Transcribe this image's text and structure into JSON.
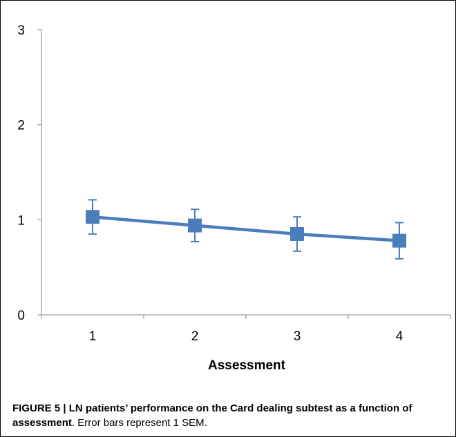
{
  "chart_data": {
    "type": "line",
    "categories": [
      "1",
      "2",
      "3",
      "4"
    ],
    "series": [
      {
        "values": [
          1.03,
          0.94,
          0.85,
          0.78
        ],
        "error": [
          0.18,
          0.17,
          0.18,
          0.19
        ],
        "color": "#4a7ebb"
      }
    ],
    "ylim": [
      0,
      3
    ],
    "yticks": [
      "0",
      "1",
      "2",
      "3"
    ],
    "xlabel": "Assessment",
    "ylabel": "",
    "grid": false,
    "marker": "square"
  },
  "caption": {
    "bold": "FIGURE 5 | LN patients’ performance on the Card dealing subtest as a function of assessment",
    "normal": ". Error bars represent 1 SEM."
  }
}
